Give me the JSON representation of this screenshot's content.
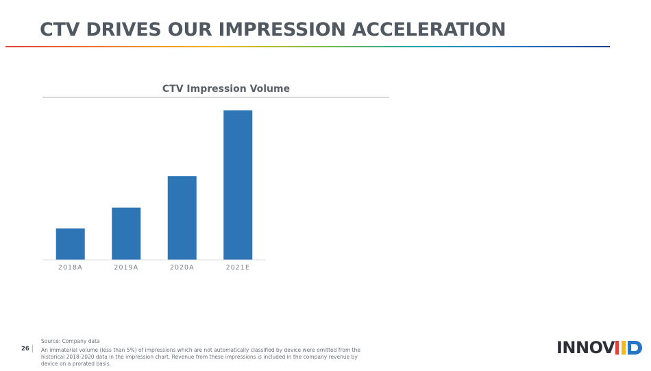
{
  "slide": {
    "title": "CTV DRIVES OUR IMPRESSION ACCELERATION",
    "page_number": "26"
  },
  "chart_data": {
    "type": "bar",
    "title": "CTV Impression Volume",
    "categories": [
      "2018A",
      "2019A",
      "2020A",
      "2021E"
    ],
    "values": [
      21,
      35,
      56,
      100
    ],
    "xlabel": "",
    "ylabel": "",
    "ylim": [
      0,
      100
    ],
    "grid": false,
    "bar_color": "#2e75b6"
  },
  "footer": {
    "source": "Source: Company data",
    "note": "An immaterial volume (less than 5%) of impressions which are not automatically classified by device were omitted from the historical 2018-2020 data in the impression chart. Revenue from these impressions is included in the company revenue by device on a prorated basis."
  },
  "logo": {
    "text": "INNOV",
    "mark_icon": "innovid-mark-icon",
    "colors": [
      "#e0403a",
      "#f2b820",
      "#2474c7"
    ]
  }
}
